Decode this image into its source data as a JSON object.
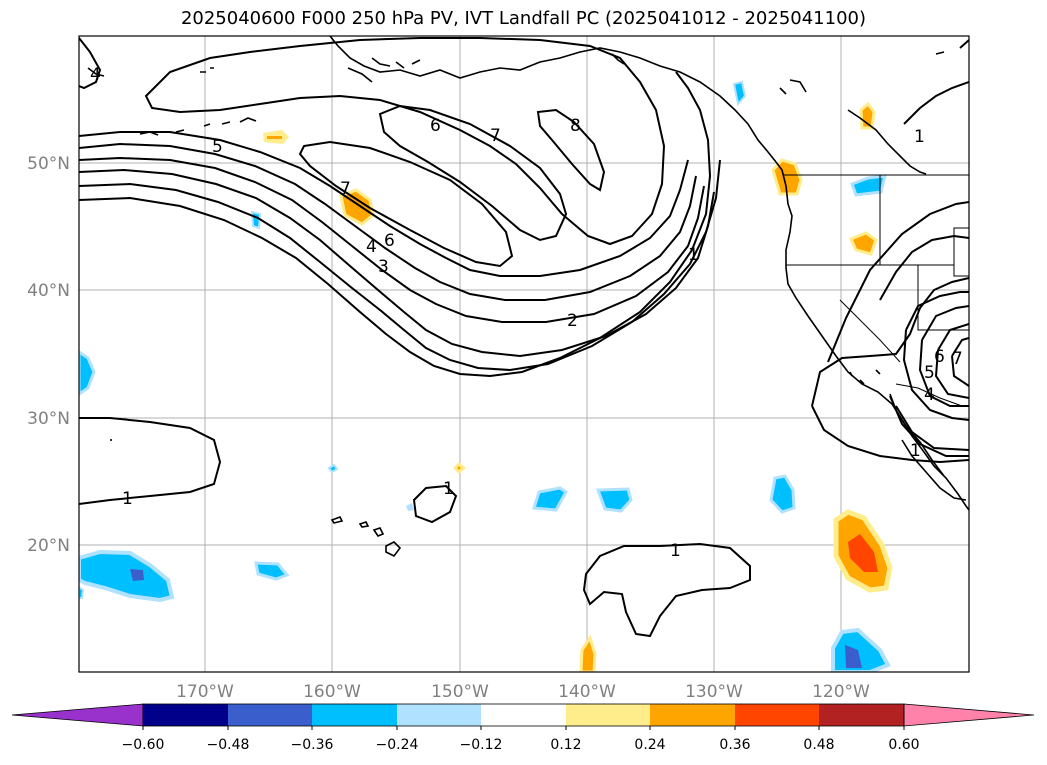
{
  "title": "2025040600 F000 250 hPa PV, IVT Landfall PC (2025041012 - 2025041100)",
  "map": {
    "projection": "PlateCarree",
    "lon_range": [
      -180,
      -110
    ],
    "lat_range": [
      10,
      60
    ],
    "gridlines": true,
    "lon_ticks": [
      {
        "label": "170°W",
        "value": -170
      },
      {
        "label": "160°W",
        "value": -160
      },
      {
        "label": "150°W",
        "value": -150
      },
      {
        "label": "140°W",
        "value": -140
      },
      {
        "label": "130°W",
        "value": -130
      },
      {
        "label": "120°W",
        "value": -120
      }
    ],
    "lat_ticks": [
      {
        "label": "50°N",
        "value": 50
      },
      {
        "label": "40°N",
        "value": 40
      },
      {
        "label": "30°N",
        "value": 30
      },
      {
        "label": "20°N",
        "value": 20
      }
    ],
    "contour_labels": [
      "6",
      "7",
      "8",
      "5",
      "7",
      "6",
      "4",
      "3",
      "1",
      "2",
      "1",
      "1",
      "1",
      "1",
      "6",
      "7",
      "5",
      "4",
      "4",
      "1"
    ]
  },
  "colorbar": {
    "extend": "both",
    "colors": [
      "#9932cc",
      "#00008b",
      "#3a5fcd",
      "#00bfff",
      "#b0e2ff",
      "#ffffff",
      "#ffec8b",
      "#ffa500",
      "#ff4500",
      "#b22222",
      "#ff82ab"
    ],
    "tick_labels": [
      "−0.60",
      "−0.48",
      "−0.36",
      "−0.24",
      "−0.12",
      "0.12",
      "0.24",
      "0.36",
      "0.48",
      "0.60"
    ]
  }
}
